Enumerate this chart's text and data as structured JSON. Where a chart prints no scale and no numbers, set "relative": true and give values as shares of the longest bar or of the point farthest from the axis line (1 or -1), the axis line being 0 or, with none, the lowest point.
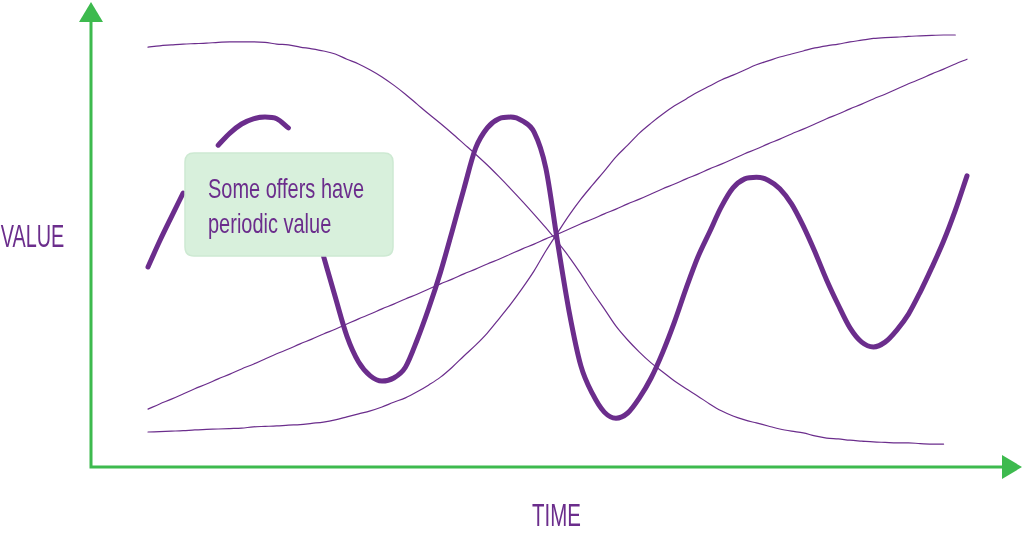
{
  "chart_data": {
    "type": "line",
    "relative": true,
    "xlabel": "TIME",
    "ylabel": "VALUE",
    "annotations": [
      "Some offers have periodic value"
    ],
    "marker": "none",
    "line_style": "solid",
    "categories": [
      null,
      null,
      null,
      null,
      null,
      null,
      null,
      null,
      null,
      null,
      null,
      null,
      null,
      null,
      null,
      null,
      null,
      null,
      null,
      null,
      null,
      null,
      null,
      null,
      null,
      null,
      null,
      null,
      null,
      null,
      null,
      null,
      null,
      null,
      null,
      null,
      null,
      null,
      null,
      null,
      null,
      null,
      null,
      null,
      null,
      null,
      null,
      null,
      null,
      null,
      null,
      null,
      null,
      null,
      null,
      null,
      null,
      null,
      null,
      null,
      null,
      null,
      null,
      null,
      null,
      null,
      null,
      null,
      null,
      null,
      null
    ],
    "series": [
      {
        "color": "#6b2d8c",
        "values": [
          0.463,
          0.523,
          0.579,
          0.634,
          null,
          null,
          0.745,
          0.773,
          0.794,
          0.806,
          0.81,
          0.806,
          0.785,
          null,
          null,
          0.488,
          0.394,
          0.303,
          0.243,
          0.211,
          0.199,
          0.206,
          0.231,
          0.294,
          0.368,
          0.451,
          0.546,
          0.644,
          0.738,
          0.785,
          0.806,
          0.81,
          0.801,
          0.775,
          0.692,
          0.521,
          0.359,
          0.234,
          0.169,
          0.127,
          0.113,
          0.125,
          0.16,
          0.206,
          0.266,
          0.336,
          0.414,
          0.486,
          0.544,
          0.602,
          0.646,
          0.667,
          0.671,
          0.664,
          0.644,
          0.609,
          0.558,
          0.498,
          0.433,
          0.375,
          0.322,
          0.289,
          0.278,
          0.289,
          0.317,
          0.354,
          0.405,
          0.462,
          0.523,
          0.594,
          0.674
        ]
      },
      {
        "color": "#6b2d8c",
        "values": [
          0.972,
          0.975,
          0.977,
          0.979,
          0.98,
          0.981,
          0.983,
          0.984,
          0.984,
          0.984,
          0.983,
          0.979,
          0.977,
          0.972,
          0.968,
          0.963,
          0.956,
          0.944,
          0.933,
          0.919,
          0.903,
          0.884,
          0.863,
          0.84,
          0.817,
          0.795,
          0.772,
          0.748,
          0.724,
          0.699,
          0.672,
          0.644,
          0.615,
          0.585,
          0.554,
          0.521,
          0.486,
          0.447,
          0.405,
          0.366,
          0.326,
          0.294,
          0.266,
          0.241,
          0.22,
          0.199,
          0.181,
          0.164,
          0.146,
          0.13,
          0.118,
          0.109,
          0.102,
          0.095,
          0.088,
          0.083,
          0.079,
          0.072,
          0.067,
          0.065,
          0.062,
          0.06,
          0.058,
          0.057,
          0.056,
          0.056,
          0.054,
          0.053,
          0.053,
          null,
          null
        ]
      },
      {
        "color": "#6b2d8c",
        "values": [
          0.081,
          0.082,
          0.083,
          0.084,
          0.086,
          0.087,
          0.088,
          0.089,
          0.09,
          0.093,
          0.094,
          0.095,
          0.097,
          0.098,
          0.101,
          0.104,
          0.109,
          0.116,
          0.123,
          0.13,
          0.139,
          0.15,
          0.16,
          0.174,
          0.19,
          0.208,
          0.231,
          0.257,
          0.282,
          0.31,
          0.343,
          0.377,
          0.414,
          0.454,
          0.5,
          0.542,
          0.583,
          0.62,
          0.653,
          0.685,
          0.718,
          0.745,
          0.773,
          0.796,
          0.817,
          0.836,
          0.852,
          0.868,
          0.882,
          0.896,
          0.907,
          0.919,
          0.931,
          0.94,
          0.949,
          0.956,
          0.963,
          0.97,
          0.975,
          0.979,
          0.984,
          0.988,
          0.992,
          0.994,
          0.995,
          0.997,
          0.998,
          0.999,
          1,
          1,
          null
        ]
      },
      {
        "color": "#6b2d8c",
        "values": [
          0.134,
          0.146,
          0.157,
          0.169,
          0.181,
          0.192,
          0.204,
          0.215,
          0.227,
          0.238,
          0.25,
          0.262,
          0.273,
          0.285,
          0.296,
          0.308,
          0.319,
          0.331,
          0.343,
          0.354,
          0.366,
          0.377,
          0.389,
          0.4,
          0.412,
          0.424,
          0.435,
          0.447,
          0.458,
          0.47,
          0.481,
          0.493,
          0.505,
          0.516,
          0.528,
          0.539,
          0.551,
          0.563,
          0.574,
          0.586,
          0.597,
          0.609,
          0.62,
          0.632,
          0.644,
          0.655,
          0.667,
          0.678,
          0.69,
          0.701,
          0.713,
          0.725,
          0.736,
          0.748,
          0.759,
          0.771,
          0.782,
          0.794,
          0.806,
          0.817,
          0.829,
          0.84,
          0.852,
          0.863,
          0.875,
          0.887,
          0.898,
          0.91,
          0.921,
          0.933,
          0.944
        ]
      }
    ]
  }
}
